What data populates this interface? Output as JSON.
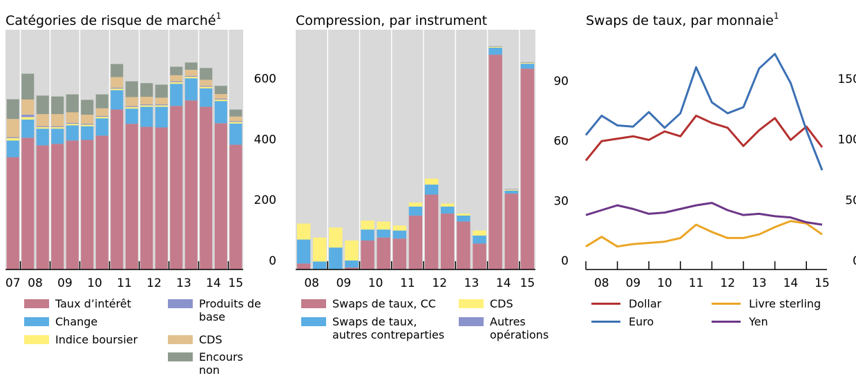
{
  "chart_data": [
    {
      "type": "bar",
      "stacked": true,
      "title": "Catégories de risque de marché",
      "title_superscript": "1",
      "categories": [
        "07",
        "08",
        null,
        "09",
        null,
        "10",
        null,
        "11",
        null,
        "12",
        null,
        "13",
        null,
        "14",
        null,
        "15"
      ],
      "series": [
        {
          "name": "Taux d’intérêt",
          "color": "#c47b8b",
          "values": [
            370,
            434,
            409,
            414,
            425,
            427,
            441,
            527,
            480,
            470,
            468,
            539,
            557,
            536,
            482,
            411
          ]
        },
        {
          "name": "Change",
          "color": "#5aaee3",
          "values": [
            55,
            60,
            55,
            50,
            50,
            45,
            57,
            64,
            50,
            66,
            68,
            73,
            73,
            61,
            73,
            70
          ]
        },
        {
          "name": "Indice boursier",
          "color": "#fff07a",
          "values": [
            8,
            8,
            5,
            5,
            5,
            5,
            5,
            5,
            5,
            5,
            5,
            5,
            5,
            5,
            5,
            5
          ]
        },
        {
          "name": "Produits de base",
          "color": "#8b93cc",
          "values": [
            3,
            8,
            3,
            3,
            3,
            3,
            3,
            3,
            3,
            3,
            3,
            3,
            3,
            3,
            3,
            3
          ]
        },
        {
          "name": "CDS",
          "color": "#e2c18f",
          "values": [
            60,
            50,
            40,
            40,
            35,
            30,
            25,
            35,
            30,
            25,
            22,
            20,
            20,
            20,
            15,
            15
          ]
        },
        {
          "name": "Encours non affecté",
          "color": "#8e9a8e",
          "values": [
            65,
            85,
            61,
            58,
            59,
            49,
            46,
            43,
            52,
            45,
            43,
            28,
            24,
            39,
            27,
            23
          ]
        }
      ],
      "ylim": [
        0,
        790
      ],
      "yticks": [
        0,
        200,
        400,
        600
      ]
    },
    {
      "type": "bar",
      "stacked": true,
      "title": "Compression, par instrument",
      "categories": [
        "08",
        null,
        "09",
        null,
        "10",
        null,
        "11",
        null,
        "12",
        null,
        "13",
        null,
        "14",
        null,
        "15"
      ],
      "series": [
        {
          "name": "Swaps de taux, CC",
          "color": "#c47b8b",
          "values": [
            3,
            0,
            0,
            1,
            14.5,
            16,
            15.5,
            27,
            37.5,
            28,
            24,
            13,
            107.5,
            38,
            100.5
          ]
        },
        {
          "name": "Swaps de taux, autres contreparties",
          "color": "#5aaee3",
          "values": [
            12,
            4,
            11,
            3.5,
            5.5,
            4,
            4,
            4.5,
            5,
            3.5,
            3,
            4,
            3.5,
            1.5,
            2.5
          ]
        },
        {
          "name": "CDS",
          "color": "#fff07a",
          "values": [
            8,
            12,
            10,
            10,
            4.5,
            4,
            2.5,
            2,
            3,
            1.5,
            1,
            2.5,
            0.5,
            0.5,
            0.5
          ]
        },
        {
          "name": "Autres opérations",
          "color": "#8b93cc",
          "values": [
            0,
            0,
            0,
            0,
            0,
            0,
            0,
            0,
            0,
            0,
            0,
            0,
            0.3,
            0.3,
            0.3
          ]
        }
      ],
      "ylim": [
        0,
        120
      ],
      "yticks": [
        0,
        30,
        60,
        90
      ]
    },
    {
      "type": "line",
      "title": "Swaps de taux, par monnaie",
      "title_superscript": "1",
      "categories": [
        null,
        "08",
        null,
        "09",
        null,
        "10",
        null,
        "11",
        null,
        "12",
        null,
        "13",
        null,
        "14",
        null,
        "15"
      ],
      "series": [
        {
          "name": "Dollar",
          "color": "#b3302f",
          "values": [
            90,
            106,
            108,
            110,
            107,
            114,
            110,
            127,
            121,
            117,
            102,
            115,
            125,
            107,
            118,
            101
          ]
        },
        {
          "name": "Euro",
          "color": "#3c70b3",
          "values": [
            111,
            127,
            119,
            118,
            130,
            117,
            129,
            167,
            138,
            129,
            134,
            166,
            178,
            154,
            115,
            82
          ]
        },
        {
          "name": "Livre sterling",
          "color": "#eba524",
          "values": [
            19,
            27,
            19,
            21,
            22,
            23,
            26,
            37,
            31,
            26,
            26,
            29,
            35,
            40,
            38,
            29
          ]
        },
        {
          "name": "Yen",
          "color": "#6c3688",
          "values": [
            45,
            49,
            53,
            50,
            46,
            47,
            50,
            53,
            55,
            49,
            45,
            46,
            44,
            43,
            39,
            37
          ]
        }
      ],
      "ylim": [
        0,
        198
      ],
      "yticks": [
        0,
        50,
        100,
        150
      ]
    }
  ]
}
